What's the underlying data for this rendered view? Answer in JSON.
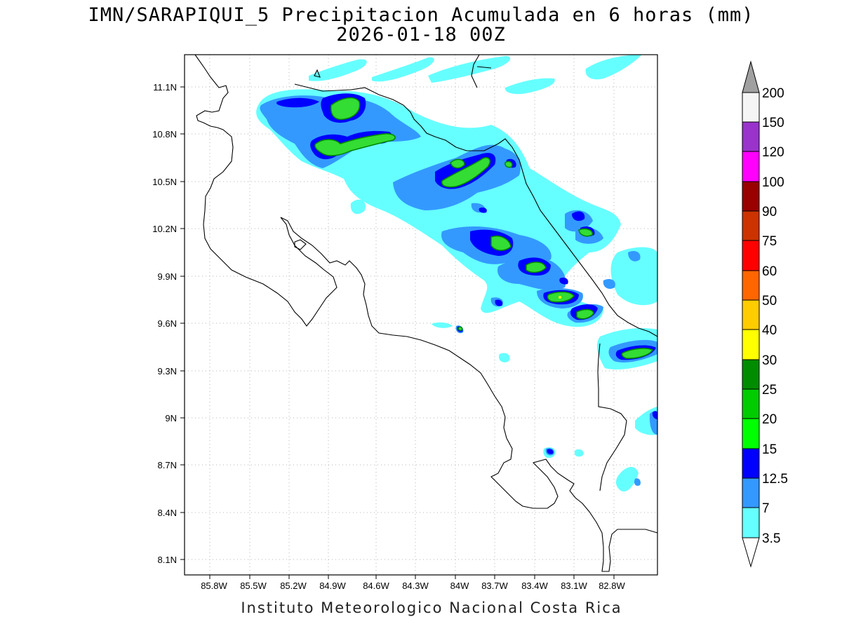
{
  "title": "IMN/SARAPIQUI_5 Precipitacion Acumulada en 6 horas (mm)",
  "subtitle": "2026-01-18 00Z",
  "footer": "Instituto Meteorologico Nacional Costa Rica",
  "lon_labels": [
    "85.8W",
    "85.5W",
    "85.2W",
    "84.9W",
    "84.6W",
    "84.3W",
    "84W",
    "83.7W",
    "83.4W",
    "83.1W",
    "82.8W"
  ],
  "lat_labels": [
    "11.1N",
    "10.8N",
    "10.5N",
    "10.2N",
    "9.9N",
    "9.6N",
    "9.3N",
    "9N",
    "8.7N",
    "8.4N",
    "8.1N"
  ],
  "colorbar": {
    "labels": [
      "200",
      "150",
      "120",
      "100",
      "90",
      "75",
      "60",
      "50",
      "40",
      "30",
      "25",
      "20",
      "15",
      "12.5",
      "7",
      "3.5"
    ],
    "colors": {
      "over": "#a0a0a0",
      "c150": "#f5f5f5",
      "c120": "#9933cc",
      "c100": "#ff00ff",
      "c90": "#990000",
      "c75": "#cc3300",
      "c60": "#ff0000",
      "c50": "#ff6600",
      "c40": "#ffcc00",
      "c30": "#ffff00",
      "c25": "#008c00",
      "c20": "#00cc00",
      "c15": "#00ff00",
      "c12_5": "#0000ff",
      "c7": "#3399ff",
      "c3_5": "#66ffff",
      "under": "#ffffff"
    }
  },
  "legend_colors": {
    "light": "#66ffff",
    "mid": "#3399ff",
    "dark": "#0000ff",
    "green": "#33dd33",
    "darkgreen": "#009900"
  }
}
